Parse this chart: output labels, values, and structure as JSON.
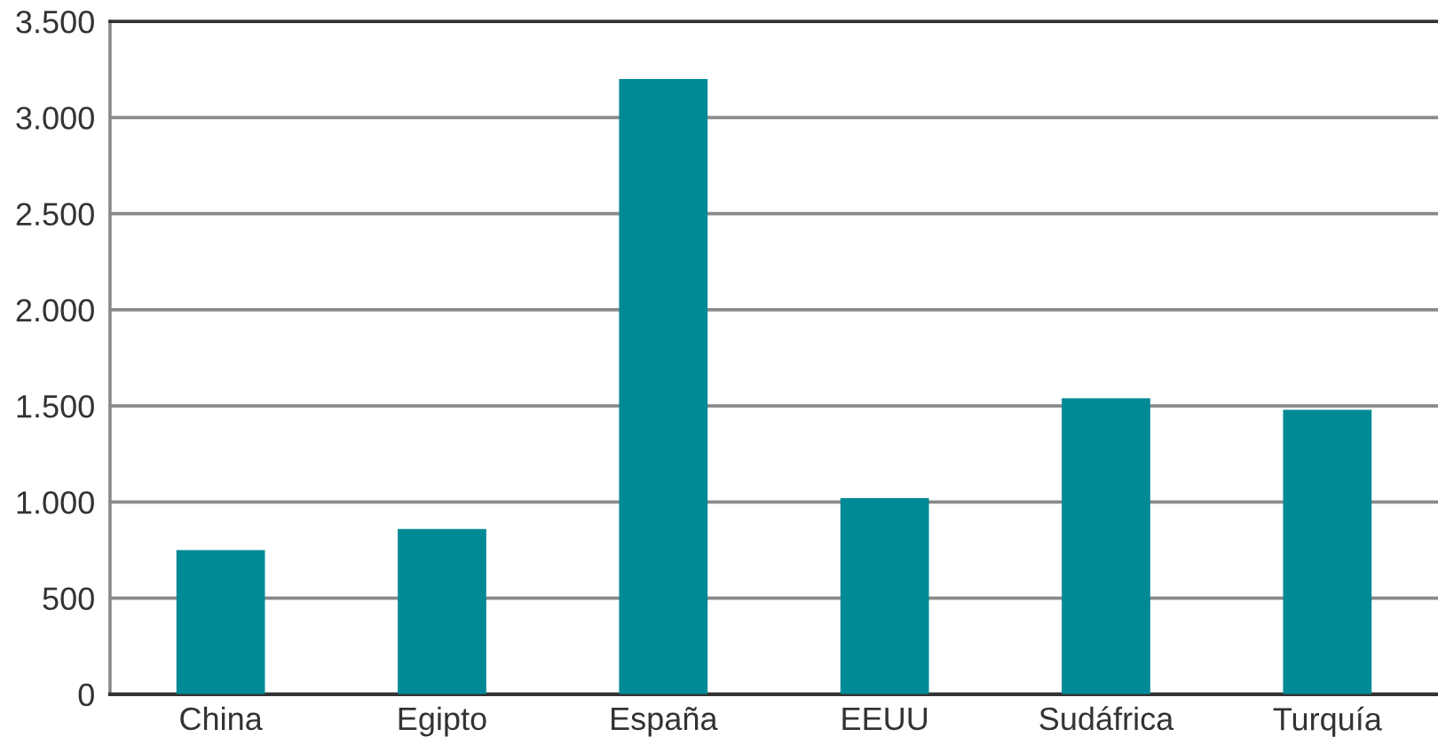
{
  "chart_data": {
    "type": "bar",
    "categories": [
      "China",
      "Egipto",
      "España",
      "EEUU",
      "Sudáfrica",
      "Turquía"
    ],
    "values": [
      750,
      860,
      3200,
      1020,
      1540,
      1480
    ],
    "color": "#008a96",
    "ylim": [
      0,
      3500
    ],
    "yticks": [
      0,
      500,
      {
        "value": 1000,
        "label": "1.000"
      },
      {
        "value": 1500,
        "label": "1.500"
      },
      {
        "value": 2000,
        "label": "2.000"
      },
      {
        "value": 2500,
        "label": "2.500"
      },
      {
        "value": 3000,
        "label": "3.000"
      },
      {
        "value": 3500,
        "label": "3.500"
      }
    ],
    "grid": "y",
    "legend": false
  }
}
